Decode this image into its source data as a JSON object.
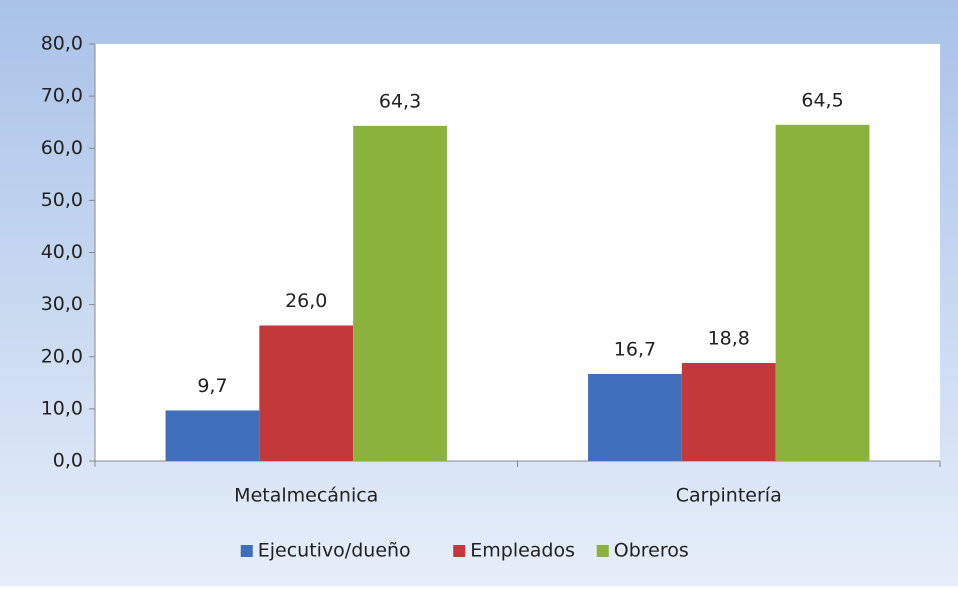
{
  "chart_data": {
    "type": "bar",
    "categories": [
      "Metalmecánica",
      "Carpintería"
    ],
    "series": [
      {
        "name": "Ejecutivo/dueño",
        "color": "#3f6fba",
        "values": [
          9.7,
          16.7
        ],
        "value_labels": [
          "9,7",
          "16,7"
        ]
      },
      {
        "name": "Empleados",
        "color": "#c3393a",
        "values": [
          26.0,
          18.8
        ],
        "value_labels": [
          "26,0",
          "18,8"
        ]
      },
      {
        "name": "Obreros",
        "color": "#8bb23c",
        "values": [
          64.3,
          64.5
        ],
        "value_labels": [
          "64,3",
          "64,5"
        ]
      }
    ],
    "ylim": [
      0,
      80
    ],
    "yticks": [
      {
        "value": 0,
        "label": "0,0"
      },
      {
        "value": 10,
        "label": "10,0"
      },
      {
        "value": 20,
        "label": "20,0"
      },
      {
        "value": 30,
        "label": "30,0"
      },
      {
        "value": 40,
        "label": "40,0"
      },
      {
        "value": 50,
        "label": "50,0"
      },
      {
        "value": 60,
        "label": "60,0"
      },
      {
        "value": 70,
        "label": "70,0"
      },
      {
        "value": 80,
        "label": "80,0"
      }
    ],
    "legend": "bottom"
  }
}
